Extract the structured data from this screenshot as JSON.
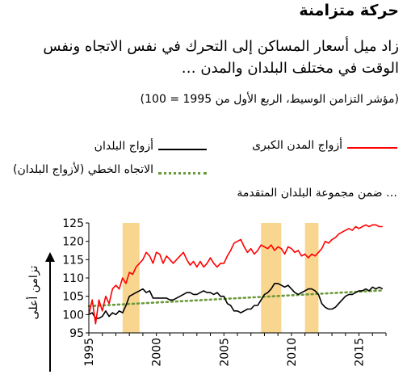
{
  "header": {
    "title": "حركة متزامنة",
    "subtitle": "زاد ميل أسعار المساكن إلى التحرك في نفس الاتجاه ونفس الوقت في مختلف البلدان والمدن …",
    "note": "(مؤشر التزامن الوسيط، الربع الأول من 1995 = 100)"
  },
  "legend": {
    "cities": "أزواج المدن الكبرى",
    "countries": "أزواج البلدان",
    "trend": "الاتجاه الخطي (لأزواج البلدان)"
  },
  "group_label": "… ضمن مجموعة البلدان المتقدمة",
  "colors": {
    "cities": "#ff0000",
    "countries": "#000000",
    "trend": "#6a9a3a",
    "shade": "#f9d68f"
  },
  "chart_data": {
    "type": "line",
    "title": "",
    "xlabel": "",
    "ylabel": "تزامن أعلى",
    "xlim": [
      1995,
      2017
    ],
    "ylim": [
      95,
      125
    ],
    "x_ticks": [
      1995,
      2000,
      2005,
      2010,
      2015
    ],
    "y_ticks": [
      95,
      100,
      105,
      110,
      115,
      120,
      125
    ],
    "shaded_periods": [
      [
        1997.5,
        1998.75
      ],
      [
        2007.75,
        2009.25
      ],
      [
        2011.0,
        2012.0
      ]
    ],
    "series": [
      {
        "name": "أزواج المدن الكبرى",
        "x": [
          1995,
          1995.25,
          1995.5,
          1995.75,
          1996,
          1996.25,
          1996.5,
          1996.75,
          1997,
          1997.25,
          1997.5,
          1997.75,
          1998,
          1998.25,
          1998.5,
          1998.75,
          1999,
          1999.25,
          1999.5,
          1999.75,
          2000,
          2000.25,
          2000.5,
          2000.75,
          2001,
          2001.25,
          2001.5,
          2001.75,
          2002,
          2002.25,
          2002.5,
          2002.75,
          2003,
          2003.25,
          2003.5,
          2003.75,
          2004,
          2004.25,
          2004.5,
          2004.75,
          2005,
          2005.25,
          2005.5,
          2005.75,
          2006,
          2006.25,
          2006.5,
          2006.75,
          2007,
          2007.25,
          2007.5,
          2007.75,
          2008,
          2008.25,
          2008.5,
          2008.75,
          2009,
          2009.25,
          2009.5,
          2009.75,
          2010,
          2010.25,
          2010.5,
          2010.75,
          2011,
          2011.25,
          2011.5,
          2011.75,
          2012,
          2012.25,
          2012.5,
          2012.75,
          2013,
          2013.25,
          2013.5,
          2013.75,
          2014,
          2014.25,
          2014.5,
          2014.75,
          2015,
          2015.25,
          2015.5,
          2015.75,
          2016,
          2016.25,
          2016.5,
          2016.75
        ],
        "values": [
          100,
          104,
          97.5,
          104,
          101,
          105,
          103,
          107,
          108,
          107,
          110,
          108.5,
          111.5,
          111,
          113,
          114,
          115,
          117,
          116,
          114,
          117,
          116.5,
          114,
          116,
          115,
          114,
          115,
          116,
          117,
          115,
          113.5,
          114.5,
          113,
          114.5,
          113,
          114,
          115.5,
          114,
          113,
          114,
          114,
          116,
          117.5,
          119.5,
          120,
          120.5,
          118.5,
          117,
          118,
          116.5,
          117.5,
          119,
          118.5,
          118,
          119,
          117.5,
          118.5,
          118,
          116.5,
          118.5,
          118,
          117,
          117.5,
          116,
          116.5,
          115.5,
          116.5,
          116,
          117,
          118,
          120,
          119.5,
          120.5,
          121,
          122,
          122.5,
          123,
          123.5,
          123,
          124,
          123.5,
          124,
          124.5,
          124,
          124.5,
          124.5,
          124,
          124
        ]
      },
      {
        "name": "أزواج البلدان",
        "x": [
          1995,
          1995.25,
          1995.5,
          1995.75,
          1996,
          1996.25,
          1996.5,
          1996.75,
          1997,
          1997.25,
          1997.5,
          1997.75,
          1998,
          1998.25,
          1998.5,
          1998.75,
          1999,
          1999.25,
          1999.5,
          1999.75,
          2000,
          2000.25,
          2000.5,
          2000.75,
          2001,
          2001.25,
          2001.5,
          2001.75,
          2002,
          2002.25,
          2002.5,
          2002.75,
          2003,
          2003.25,
          2003.5,
          2003.75,
          2004,
          2004.25,
          2004.5,
          2004.75,
          2005,
          2005.25,
          2005.5,
          2005.75,
          2006,
          2006.25,
          2006.5,
          2006.75,
          2007,
          2007.25,
          2007.5,
          2007.75,
          2008,
          2008.25,
          2008.5,
          2008.75,
          2009,
          2009.25,
          2009.5,
          2009.75,
          2010,
          2010.25,
          2010.5,
          2010.75,
          2011,
          2011.25,
          2011.5,
          2011.75,
          2012,
          2012.25,
          2012.5,
          2012.75,
          2013,
          2013.25,
          2013.5,
          2013.75,
          2014,
          2014.25,
          2014.5,
          2014.75,
          2015,
          2015.25,
          2015.5,
          2015.75,
          2016,
          2016.25,
          2016.5,
          2016.75
        ],
        "values": [
          100,
          100.5,
          99,
          99,
          99.5,
          101,
          99.5,
          100.5,
          100,
          101,
          100.5,
          102.5,
          105,
          105.5,
          106,
          106.5,
          107,
          106,
          106.5,
          104.5,
          104.5,
          104.5,
          104.5,
          104.5,
          104,
          104,
          104.5,
          105,
          105.5,
          106,
          106,
          105.5,
          105.5,
          106,
          106.5,
          106,
          106,
          105.5,
          106,
          105,
          105,
          103,
          102.5,
          101,
          101,
          100.5,
          101,
          101.5,
          101.5,
          102.5,
          102.5,
          104,
          105.5,
          106,
          107,
          108.5,
          108.5,
          108,
          107.5,
          108,
          107,
          106,
          105.5,
          106,
          106.5,
          107,
          107,
          106.5,
          105.5,
          103,
          102,
          101.5,
          101.5,
          102,
          103,
          104,
          105,
          105.5,
          105.5,
          106,
          106.5,
          106.5,
          107,
          106.5,
          107.5,
          107,
          107.5,
          107
        ]
      },
      {
        "name": "الاتجاه الخطي (لأزواج البلدان)",
        "x": [
          1995,
          2016.75
        ],
        "values": [
          102.3,
          106.6
        ]
      }
    ]
  }
}
